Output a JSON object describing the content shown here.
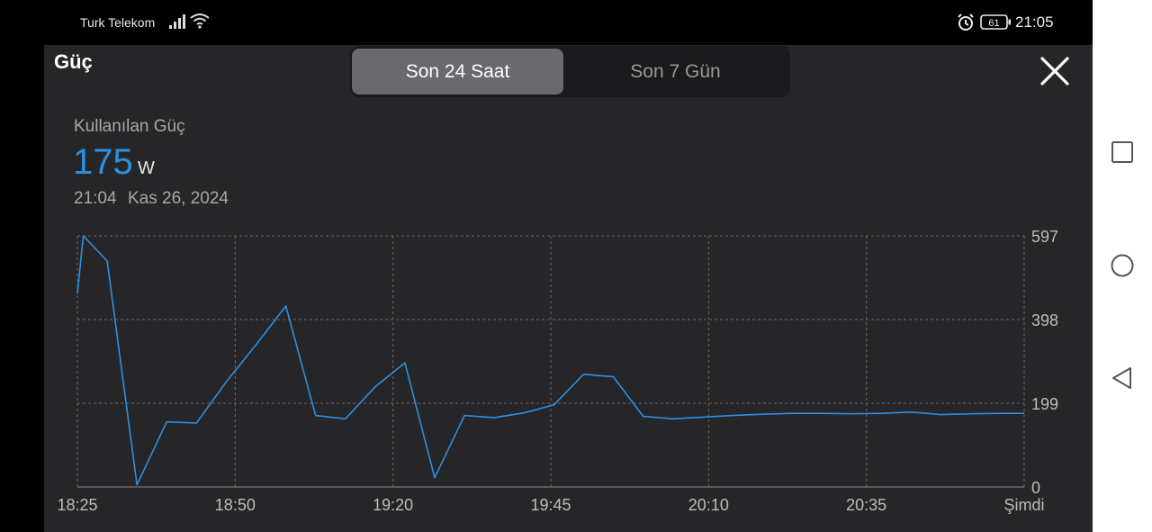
{
  "status_bar": {
    "carrier": "Turk Telekom",
    "battery": "61",
    "time": "21:05",
    "icons": [
      "signal-icon",
      "wifi-icon",
      "alarm-icon",
      "battery-icon"
    ]
  },
  "panel": {
    "title": "Güç",
    "tabs": [
      {
        "label": "Son 24 Saat",
        "active": true
      },
      {
        "label": "Son 7 Gün",
        "active": false
      }
    ],
    "close_icon": "close-icon"
  },
  "metric": {
    "label": "Kullanılan Güç",
    "value": "175",
    "unit": "W",
    "time": "21:04",
    "date": "Kas 26, 2024"
  },
  "chart_data": {
    "type": "line",
    "title": "",
    "xlabel": "",
    "ylabel": "",
    "x_tick_labels": [
      "18:25",
      "18:50",
      "19:20",
      "19:45",
      "20:10",
      "20:35",
      "Şimdi"
    ],
    "y_tick_labels": [
      "597",
      "398",
      "199",
      "0"
    ],
    "ylim": [
      0,
      597
    ],
    "grid": true,
    "line_color": "#2d8fe0",
    "series": [
      {
        "x": [
          "18:25",
          "18:26",
          "18:30",
          "18:35",
          "18:40",
          "18:45",
          "18:50",
          "18:55",
          "19:00",
          "19:05",
          "19:10",
          "19:15",
          "19:20",
          "19:25",
          "19:30",
          "19:35",
          "19:40",
          "19:45",
          "19:50",
          "19:55",
          "20:00",
          "20:05",
          "20:10",
          "20:15",
          "20:20",
          "20:25",
          "20:30",
          "20:35",
          "20:40",
          "20:45",
          "20:50",
          "20:55",
          "21:00",
          "21:04"
        ],
        "values": [
          460,
          597,
          537,
          5,
          155,
          152,
          250,
          338,
          430,
          170,
          162,
          238,
          295,
          22,
          170,
          165,
          176,
          195,
          268,
          262,
          168,
          162,
          166,
          170,
          173,
          175,
          175,
          174,
          175,
          178,
          172,
          174,
          175,
          175
        ]
      }
    ]
  }
}
